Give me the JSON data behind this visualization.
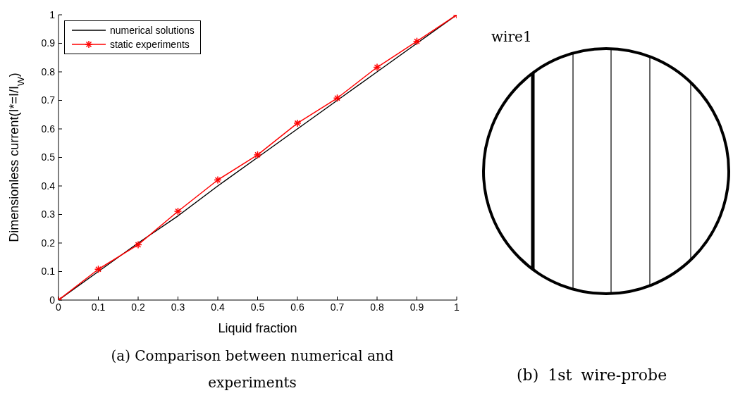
{
  "chart_data": {
    "type": "line",
    "x": [
      0,
      0.1,
      0.2,
      0.3,
      0.4,
      0.5,
      0.6,
      0.7,
      0.8,
      0.9,
      1
    ],
    "series": [
      {
        "name": "numerical solutions",
        "color": "#000000",
        "marker": "none",
        "values": [
          0,
          0.1,
          0.2,
          0.295,
          0.4,
          0.5,
          0.6,
          0.7,
          0.8,
          0.9,
          1
        ]
      },
      {
        "name": "static experiments",
        "color": "#ff0000",
        "marker": "cross",
        "values": [
          0,
          0.108,
          0.194,
          0.311,
          0.421,
          0.509,
          0.62,
          0.708,
          0.816,
          0.907,
          1
        ]
      }
    ],
    "xlabel": "Liquid fraction",
    "ylabel": "Dimensionless current(I*=I/I$_{W}$)",
    "xlim": [
      0,
      1
    ],
    "ylim": [
      0,
      1
    ],
    "xticks": [
      0,
      0.1,
      0.2,
      0.3,
      0.4,
      0.5,
      0.6,
      0.7,
      0.8,
      0.9,
      1
    ],
    "yticks": [
      0,
      0.1,
      0.2,
      0.3,
      0.4,
      0.5,
      0.6,
      0.7,
      0.8,
      0.9,
      1
    ],
    "grid": false,
    "legend": "top left",
    "line_style": "solid",
    "annotations": [
      "(a) Comparison between numerical and experiments",
      "wire1",
      "(b) 1st wire-probe"
    ]
  }
}
